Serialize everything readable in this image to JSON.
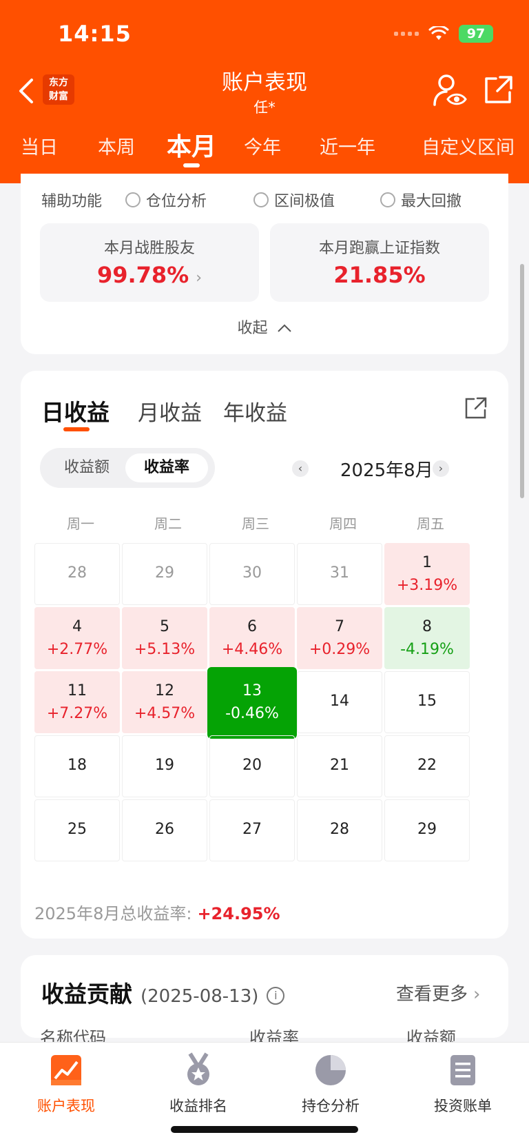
{
  "status_bar": {
    "time": "14:15",
    "battery": "97"
  },
  "header": {
    "title": "账户表现",
    "subtitle": "任*",
    "brand_line1": "东方",
    "brand_line2": "财富"
  },
  "period_tabs": [
    "当日",
    "本周",
    "本月",
    "今年",
    "近一年",
    "自定义区间"
  ],
  "active_period": "本月",
  "aux": {
    "label": "辅助功能",
    "options": [
      "仓位分析",
      "区间极值",
      "最大回撤"
    ]
  },
  "stats": {
    "beat_friends_label": "本月战胜股友",
    "beat_friends_value": "99.78%",
    "beat_index_label": "本月跑赢上证指数",
    "beat_index_value": "21.85%"
  },
  "collapse_label": "收起",
  "profit_tabs": [
    "日收益",
    "月收益",
    "年收益"
  ],
  "segment": {
    "amount": "收益额",
    "rate": "收益率",
    "active": "收益率"
  },
  "month": "2025年8月",
  "weekdays": [
    "周一",
    "周二",
    "周三",
    "周四",
    "周五"
  ],
  "calendar": [
    [
      {
        "day": "28",
        "ret": "",
        "state": "dim"
      },
      {
        "day": "29",
        "ret": "",
        "state": "dim"
      },
      {
        "day": "30",
        "ret": "",
        "state": "dim"
      },
      {
        "day": "31",
        "ret": "",
        "state": "dim"
      },
      {
        "day": "1",
        "ret": "+3.19%",
        "state": "pos"
      }
    ],
    [
      {
        "day": "4",
        "ret": "+2.77%",
        "state": "pos"
      },
      {
        "day": "5",
        "ret": "+5.13%",
        "state": "pos"
      },
      {
        "day": "6",
        "ret": "+4.46%",
        "state": "pos"
      },
      {
        "day": "7",
        "ret": "+0.29%",
        "state": "pos"
      },
      {
        "day": "8",
        "ret": "-4.19%",
        "state": "neg"
      }
    ],
    [
      {
        "day": "11",
        "ret": "+7.27%",
        "state": "pos"
      },
      {
        "day": "12",
        "ret": "+4.57%",
        "state": "pos"
      },
      {
        "day": "13",
        "ret": "-0.46%",
        "state": "sel"
      },
      {
        "day": "14",
        "ret": "",
        "state": "none"
      },
      {
        "day": "15",
        "ret": "",
        "state": "none"
      }
    ],
    [
      {
        "day": "18",
        "ret": "",
        "state": "none"
      },
      {
        "day": "19",
        "ret": "",
        "state": "none"
      },
      {
        "day": "20",
        "ret": "",
        "state": "none"
      },
      {
        "day": "21",
        "ret": "",
        "state": "none"
      },
      {
        "day": "22",
        "ret": "",
        "state": "none"
      }
    ],
    [
      {
        "day": "25",
        "ret": "",
        "state": "none"
      },
      {
        "day": "26",
        "ret": "",
        "state": "none"
      },
      {
        "day": "27",
        "ret": "",
        "state": "none"
      },
      {
        "day": "28",
        "ret": "",
        "state": "none"
      },
      {
        "day": "29",
        "ret": "",
        "state": "none"
      }
    ]
  ],
  "total": {
    "label": "2025年8月总收益率:",
    "value": "+24.95%"
  },
  "contribution": {
    "title": "收益贡献",
    "date": "(2025-08-13)",
    "more": "查看更多",
    "columns": [
      "名称代码",
      "收益率",
      "收益额"
    ]
  },
  "bottom_nav": [
    {
      "label": "账户表现",
      "icon": "chart-trend-icon",
      "active": true
    },
    {
      "label": "收益排名",
      "icon": "medal-icon",
      "active": false
    },
    {
      "label": "持仓分析",
      "icon": "pie-chart-icon",
      "active": false
    },
    {
      "label": "投资账单",
      "icon": "bill-icon",
      "active": false
    }
  ],
  "colors": {
    "brand": "#ff5000",
    "up": "#e8222c",
    "down": "#16a016",
    "selected": "#05a305"
  }
}
